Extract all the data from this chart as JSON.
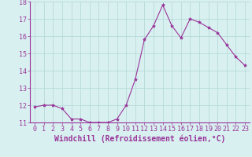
{
  "x": [
    0,
    1,
    2,
    3,
    4,
    5,
    6,
    7,
    8,
    9,
    10,
    11,
    12,
    13,
    14,
    15,
    16,
    17,
    18,
    19,
    20,
    21,
    22,
    23
  ],
  "y": [
    11.9,
    12.0,
    12.0,
    11.8,
    11.2,
    11.2,
    11.0,
    11.0,
    11.0,
    11.2,
    12.0,
    13.5,
    15.8,
    16.6,
    17.8,
    16.6,
    15.9,
    17.0,
    16.8,
    16.5,
    16.2,
    15.5,
    14.8,
    14.3
  ],
  "line_color": "#993399",
  "marker": "*",
  "marker_size": 3,
  "bg_color": "#d8f0f0",
  "grid_color": "#b8dada",
  "xlabel": "Windchill (Refroidissement éolien,°C)",
  "xlabel_fontsize": 7,
  "tick_fontsize": 6,
  "ylim": [
    11,
    18
  ],
  "xlim": [
    -0.5,
    23.5
  ],
  "yticks": [
    11,
    12,
    13,
    14,
    15,
    16,
    17,
    18
  ],
  "xticks": [
    0,
    1,
    2,
    3,
    4,
    5,
    6,
    7,
    8,
    9,
    10,
    11,
    12,
    13,
    14,
    15,
    16,
    17,
    18,
    19,
    20,
    21,
    22,
    23
  ]
}
